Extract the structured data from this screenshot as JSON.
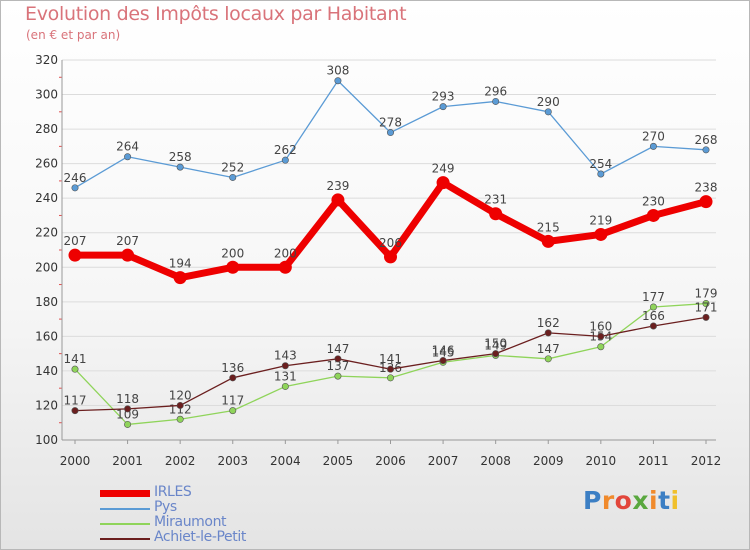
{
  "title": "Evolution des Impôts locaux par Habitant",
  "subtitle": "(en € et par an)",
  "logo": {
    "text": "Proxiti",
    "letter_colors": [
      "#3c7fc4",
      "#f08a2c",
      "#e2463b",
      "#5aa83f",
      "#f08a2c",
      "#3c7fc4",
      "#f0c02c"
    ]
  },
  "chart_data": {
    "type": "line",
    "title": "Evolution des Impôts locaux par Habitant",
    "subtitle": "(en € et par an)",
    "xlabel": "",
    "ylabel": "",
    "ylim": [
      100,
      320
    ],
    "yticks": [
      100,
      120,
      140,
      160,
      180,
      200,
      220,
      240,
      260,
      280,
      300,
      320
    ],
    "grid": true,
    "legend_position": "bottom-left",
    "x": [
      "2000",
      "2001",
      "2002",
      "2003",
      "2004",
      "2005",
      "2006",
      "2007",
      "2008",
      "2009",
      "2010",
      "2011",
      "2012"
    ],
    "series": [
      {
        "name": "Pys",
        "color": "#5b9bd5",
        "values": [
          246,
          264,
          258,
          252,
          262,
          308,
          278,
          293,
          296,
          290,
          254,
          270,
          268
        ]
      },
      {
        "name": "Miraumont",
        "color": "#8fd45a",
        "values": [
          141,
          109,
          112,
          117,
          131,
          137,
          136,
          145,
          149,
          147,
          154,
          177,
          179
        ]
      },
      {
        "name": "Achiet-le-Petit",
        "color": "#6b1f1f",
        "values": [
          117,
          118,
          120,
          136,
          143,
          147,
          141,
          146,
          150,
          162,
          160,
          166,
          171
        ]
      },
      {
        "name": "IRLES",
        "color": "#ee0000",
        "values": [
          207,
          207,
          194,
          200,
          200,
          239,
          206,
          249,
          231,
          215,
          219,
          230,
          238
        ]
      }
    ],
    "legend_order": [
      "IRLES",
      "Pys",
      "Miraumont",
      "Achiet-le-Petit"
    ]
  }
}
